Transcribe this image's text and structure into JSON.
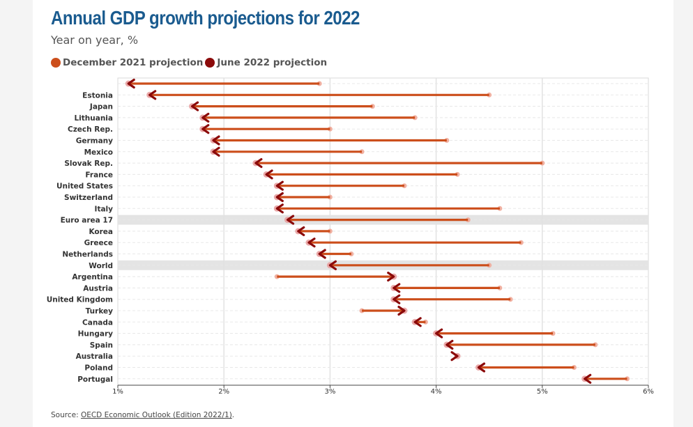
{
  "title": "Annual GDP growth projections for 2022",
  "subtitle": "Year on year, %",
  "legend": {
    "dec": {
      "label": "December 2021 projection",
      "color": "#cc4e1b"
    },
    "jun": {
      "label": "June 2022 projection",
      "color": "#8b0a0a"
    }
  },
  "source": {
    "prefix": "Source: ",
    "link": "OECD Economic Outlook (Edition 2022/1)",
    "suffix": "."
  },
  "chart_data": {
    "type": "dumbbell",
    "title": "Annual GDP growth projections for 2022",
    "ylabel": "",
    "xlabel": "",
    "xlim": [
      1,
      6
    ],
    "x_ticks": [
      1,
      2,
      3,
      4,
      5,
      6
    ],
    "x_tick_labels": [
      "1%",
      "2%",
      "3%",
      "4%",
      "5%",
      "6%"
    ],
    "highlighted": [
      "Euro area 17",
      "World"
    ],
    "categories": [
      "",
      "Estonia",
      "Japan",
      "Lithuania",
      "Czech Rep.",
      "Germany",
      "Mexico",
      "Slovak Rep.",
      "France",
      "United States",
      "Switzerland",
      "Italy",
      "Euro area 17",
      "Korea",
      "Greece",
      "Netherlands",
      "World",
      "Argentina",
      "Austria",
      "United Kingdom",
      "Turkey",
      "Canada",
      "Hungary",
      "Spain",
      "Australia",
      "Poland",
      "Portugal"
    ],
    "series": [
      {
        "name": "December 2021 projection",
        "values": [
          2.9,
          4.5,
          3.4,
          3.8,
          3.0,
          4.1,
          3.3,
          5.0,
          4.2,
          3.7,
          3.0,
          4.6,
          4.3,
          3.0,
          4.8,
          3.2,
          4.5,
          2.5,
          4.6,
          4.7,
          3.3,
          3.9,
          5.1,
          5.5,
          4.2,
          5.3,
          5.8
        ]
      },
      {
        "name": "June 2022 projection",
        "values": [
          1.1,
          1.3,
          1.7,
          1.8,
          1.8,
          1.9,
          1.9,
          2.3,
          2.4,
          2.5,
          2.5,
          2.5,
          2.6,
          2.7,
          2.8,
          2.9,
          3.0,
          3.6,
          3.6,
          3.6,
          3.7,
          3.8,
          4.0,
          4.1,
          4.2,
          4.4,
          5.4
        ]
      }
    ]
  }
}
